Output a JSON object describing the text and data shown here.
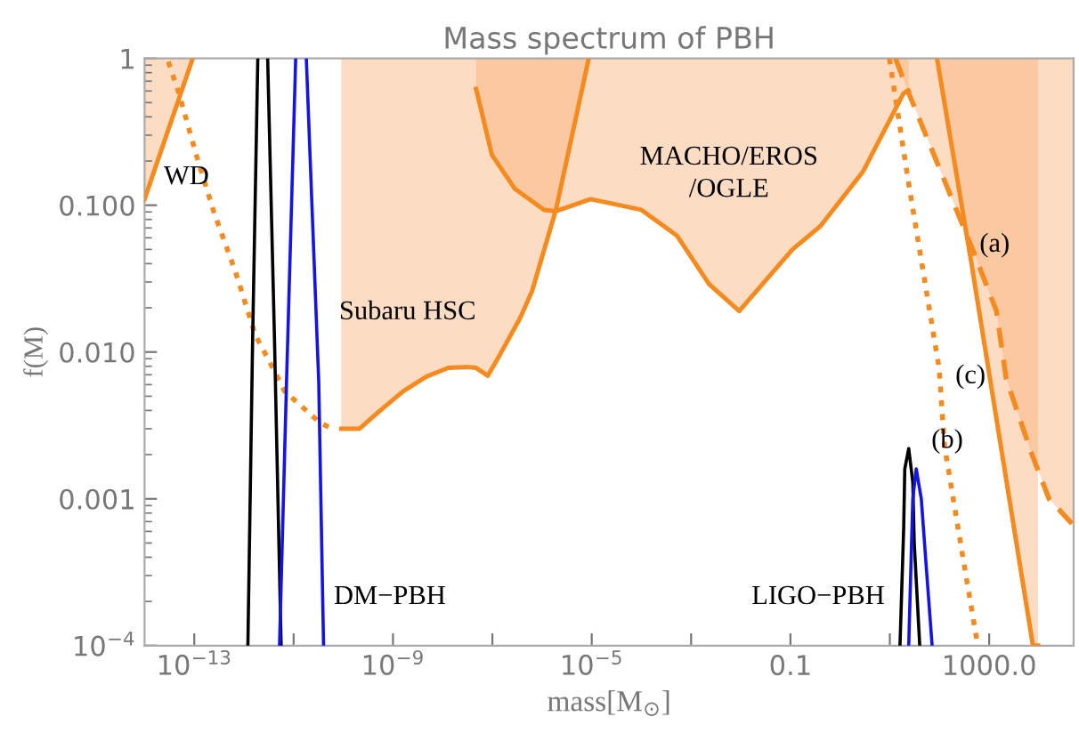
{
  "chart_data": {
    "type": "line",
    "title": "Mass spectrum of PBH",
    "xlabel": "mass[M$_{⊙}$]",
    "ylabel": "f(M)",
    "log": "xy",
    "grid": false,
    "xlim": [
      1e-14,
      50000.0
    ],
    "ylim": [
      0.0001,
      1
    ],
    "xticks": [
      {
        "value": 1e-13,
        "label": "10$^{−13}$"
      },
      {
        "value": 1e-11,
        "label": null
      },
      {
        "value": 1e-09,
        "label": "10$^{−9}$"
      },
      {
        "value": 1e-07,
        "label": null
      },
      {
        "value": 1e-05,
        "label": "10$^{−5}$"
      },
      {
        "value": 0.001,
        "label": null
      },
      {
        "value": 0.1,
        "label": "0.1"
      },
      {
        "value": 10,
        "label": null
      },
      {
        "value": 1000,
        "label": "1000.0"
      }
    ],
    "yticks": [
      {
        "value": 0.0001,
        "label": "10$^{−4}$"
      },
      0.001,
      {
        "value": 0.01,
        "label": "0.010"
      },
      {
        "value": 0.1,
        "label": "0.100"
      },
      1
    ],
    "series": [
      {
        "color": "#f58a1f",
        "line_style": "solid",
        "x": [
          1e-14,
          9.3e-14
        ],
        "values": [
          0.11,
          1
        ],
        "lower": [
          0.11,
          1
        ],
        "upper": [
          1,
          1
        ]
      },
      {
        "color": "#f58a1f",
        "line_style": "dotted",
        "x": [
          3e-14,
          4.9e-14,
          1.1e-13,
          2.5e-13,
          6.8e-13,
          1.7e-12,
          4.4e-12,
          6.6e-12,
          3.4e-11,
          6e-11
        ],
        "values": [
          0.95,
          0.58,
          0.22,
          0.089,
          0.035,
          0.013,
          0.0071,
          0.0054,
          0.0033,
          0.003
        ]
      },
      {
        "color": "#f58a1f",
        "line_style": "solid",
        "x": [
          9.1e-11,
          2.1e-10,
          5.1e-10,
          1.6e-09,
          4.7e-09,
          1.3e-08,
          3.1e-08,
          4.7e-08,
          8.1e-08,
          1.4e-07,
          3.6e-07,
          6.3e-07,
          1.9e-06,
          8.7e-06
        ],
        "values": [
          0.003,
          0.003,
          0.0039,
          0.0054,
          0.0068,
          0.0078,
          0.0079,
          0.0078,
          0.0069,
          0.0095,
          0.017,
          0.026,
          0.093,
          1
        ],
        "lower": [
          0.003,
          0.003,
          0.0039,
          0.0054,
          0.0068,
          0.0078,
          0.0079,
          0.0078,
          0.0069,
          0.0095,
          0.017,
          0.026,
          0.093,
          1
        ],
        "upper": [
          1,
          1,
          1,
          1,
          1,
          1,
          1,
          1,
          1,
          1,
          1,
          1,
          1,
          1
        ]
      },
      {
        "color": "#f58a1f",
        "line_style": "solid",
        "x": [
          4.7e-08,
          9.8e-08,
          2.8e-07,
          1.1e-06,
          1.9e-06,
          9.5e-06,
          0.0001,
          0.00052,
          0.0023,
          0.0093,
          0.11,
          0.4,
          2.9,
          19,
          24
        ],
        "values": [
          0.62,
          0.22,
          0.13,
          0.093,
          0.091,
          0.11,
          0.093,
          0.062,
          0.029,
          0.019,
          0.05,
          0.072,
          0.17,
          0.58,
          0.6
        ],
        "lower": [
          0.62,
          0.22,
          0.13,
          0.093,
          0.091,
          0.11,
          0.093,
          0.062,
          0.029,
          0.019,
          0.05,
          0.072,
          0.17,
          0.58,
          0.6
        ],
        "upper": [
          1,
          1,
          1,
          1,
          1,
          1,
          1,
          1,
          1,
          1,
          1,
          1,
          1,
          1,
          1
        ]
      },
      {
        "color": "#f58a1f",
        "line_style": "solid",
        "x": [
          89,
          430,
          7600,
          9600
        ],
        "values": [
          1,
          0.042,
          0.0001,
          0.0001
        ],
        "lower": [
          1,
          0.042,
          0.0001,
          0.0001
        ],
        "upper": [
          1,
          1,
          1,
          1
        ]
      },
      {
        "color": "#f58a1f",
        "line_style": "dashed",
        "x": [
          13,
          24,
          500,
          1400,
          2200,
          6900,
          16000,
          50000
        ],
        "values": [
          1,
          0.58,
          0.047,
          0.019,
          0.0066,
          0.0021,
          0.001,
          0.00066
        ],
        "lower": [
          1,
          0.58,
          0.047,
          0.019,
          0.0066,
          0.0021,
          0.001,
          0.00066
        ],
        "upper": [
          1,
          1,
          1,
          1,
          1,
          1,
          1,
          1
        ]
      },
      {
        "color": "#f58a1f",
        "line_style": "dotted",
        "x": [
          9.8,
          24,
          98,
          126,
          282,
          589
        ],
        "values": [
          1,
          0.14,
          0.0078,
          0.0023,
          0.00044,
          0.0001
        ]
      },
      {
        "color": "#000000",
        "line_style": "solid",
        "x": [
          1.2e-12,
          1.5e-12,
          1.9e-12,
          2.4e-12,
          3e-12,
          4.1e-12,
          5.6e-12
        ],
        "values": [
          0.0001,
          0.013,
          1,
          null,
          1,
          0.013,
          0.0001
        ]
      },
      {
        "color": "#1414e6",
        "line_style": "solid",
        "x": [
          5.2e-12,
          7.2e-12,
          1.1e-11,
          1.4e-11,
          1.8e-11,
          3.2e-11,
          4e-11
        ],
        "values": [
          0.0001,
          0.0063,
          1,
          null,
          1,
          0.0063,
          0.0001
        ]
      },
      {
        "color": "#000000",
        "line_style": "solid",
        "x": [
          16,
          19,
          20,
          24,
          29,
          31,
          40
        ],
        "values": [
          0.0001,
          0.00063,
          0.0016,
          0.0022,
          0.0013,
          0.0005,
          0.0001
        ]
      },
      {
        "color": "#1414e6",
        "line_style": "solid",
        "x": [
          24,
          29,
          34,
          43,
          55,
          71
        ],
        "values": [
          0.0001,
          0.001,
          0.0016,
          0.001,
          0.00032,
          0.0001
        ]
      }
    ],
    "annotations": [
      "WD",
      "Subaru HSC",
      "MACHO/EROS\n/OGLE",
      "DM−PBH",
      "LIGO−PBH",
      "(a)",
      "(c)",
      "(b)"
    ]
  }
}
